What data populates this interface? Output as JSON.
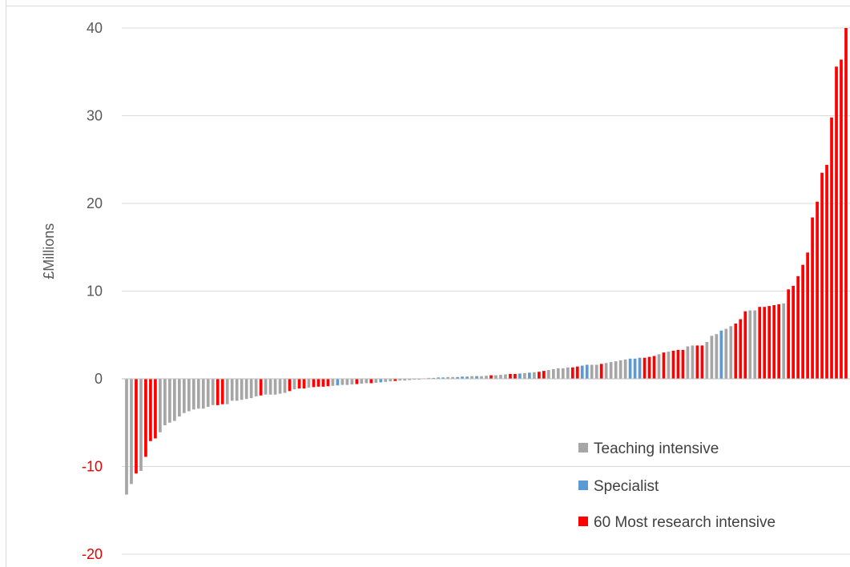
{
  "chart_data": {
    "type": "bar",
    "title": "",
    "xlabel": "",
    "ylabel": "£Millions",
    "ylim": [
      -20,
      40
    ],
    "yticks": [
      40,
      30,
      20,
      10,
      0,
      -10,
      -20
    ],
    "grid": true,
    "legend_position": "bottom-right",
    "colors": {
      "teaching": "#a6a6a6",
      "specialist": "#5b9bd5",
      "research": "#ff0000",
      "negative_tick": "#e60000"
    },
    "legend": [
      {
        "key": "teaching",
        "label": "Teaching intensive"
      },
      {
        "key": "specialist",
        "label": "Specialist"
      },
      {
        "key": "research",
        "label": "60 Most research intensive"
      }
    ],
    "series": [
      {
        "key": "teaching",
        "name": "Teaching intensive"
      },
      {
        "key": "specialist",
        "name": "Specialist"
      },
      {
        "key": "research",
        "name": "60 Most research intensive"
      }
    ],
    "values": [
      -13.2,
      -12,
      -10.8,
      -10.5,
      -8.9,
      -7.1,
      -6.8,
      -6.1,
      -5.3,
      -5.0,
      -4.8,
      -4.3,
      -3.9,
      -3.7,
      -3.5,
      -3.4,
      -3.4,
      -3.2,
      -3.0,
      -3.0,
      -2.9,
      -2.9,
      -2.5,
      -2.5,
      -2.4,
      -2.3,
      -2.2,
      -2.0,
      -1.9,
      -1.8,
      -1.8,
      -1.8,
      -1.7,
      -1.6,
      -1.4,
      -1.2,
      -1.1,
      -1.1,
      -1.0,
      -0.95,
      -0.9,
      -0.9,
      -0.85,
      -0.8,
      -0.75,
      -0.7,
      -0.7,
      -0.65,
      -0.6,
      -0.55,
      -0.5,
      -0.5,
      -0.45,
      -0.4,
      -0.35,
      -0.3,
      -0.25,
      -0.2,
      -0.2,
      -0.15,
      -0.1,
      -0.1,
      0.05,
      0.1,
      0.1,
      0.15,
      0.15,
      0.2,
      0.2,
      0.2,
      0.25,
      0.25,
      0.3,
      0.3,
      0.3,
      0.35,
      0.4,
      0.4,
      0.45,
      0.5,
      0.55,
      0.55,
      0.6,
      0.65,
      0.7,
      0.75,
      0.8,
      0.9,
      1.0,
      1.1,
      1.2,
      1.2,
      1.3,
      1.3,
      1.4,
      1.5,
      1.6,
      1.6,
      1.6,
      1.7,
      1.8,
      1.9,
      2.0,
      2.1,
      2.2,
      2.3,
      2.3,
      2.4,
      2.4,
      2.5,
      2.6,
      2.8,
      3.0,
      3.1,
      3.2,
      3.3,
      3.3,
      3.7,
      3.8,
      3.8,
      3.8,
      4.2,
      4.9,
      5.1,
      5.5,
      5.7,
      6.0,
      6.3,
      6.8,
      7.7,
      7.8,
      7.8,
      8.2,
      8.2,
      8.3,
      8.4,
      8.5,
      8.6,
      10.2,
      10.6,
      11.7,
      13.0,
      14.4,
      18.4,
      20.2,
      23.5,
      24.4,
      29.8,
      35.6,
      36.4,
      40.0
    ],
    "groups": [
      "teaching",
      "teaching",
      "research",
      "teaching",
      "research",
      "research",
      "research",
      "teaching",
      "teaching",
      "teaching",
      "teaching",
      "teaching",
      "teaching",
      "teaching",
      "teaching",
      "teaching",
      "teaching",
      "teaching",
      "teaching",
      "research",
      "research",
      "teaching",
      "teaching",
      "teaching",
      "teaching",
      "teaching",
      "teaching",
      "teaching",
      "research",
      "teaching",
      "teaching",
      "teaching",
      "teaching",
      "teaching",
      "research",
      "teaching",
      "research",
      "research",
      "teaching",
      "research",
      "research",
      "research",
      "research",
      "teaching",
      "specialist",
      "teaching",
      "teaching",
      "teaching",
      "research",
      "teaching",
      "teaching",
      "research",
      "teaching",
      "specialist",
      "teaching",
      "teaching",
      "research",
      "teaching",
      "teaching",
      "teaching",
      "teaching",
      "teaching",
      "research",
      "teaching",
      "specialist",
      "specialist",
      "specialist",
      "teaching",
      "teaching",
      "specialist",
      "specialist",
      "specialist",
      "teaching",
      "specialist",
      "teaching",
      "teaching",
      "research",
      "teaching",
      "teaching",
      "teaching",
      "research",
      "research",
      "specialist",
      "teaching",
      "specialist",
      "teaching",
      "research",
      "research",
      "teaching",
      "teaching",
      "teaching",
      "teaching",
      "teaching",
      "research",
      "research",
      "specialist",
      "specialist",
      "teaching",
      "teaching",
      "research",
      "teaching",
      "teaching",
      "teaching",
      "teaching",
      "teaching",
      "specialist",
      "specialist",
      "specialist",
      "research",
      "research",
      "research",
      "teaching",
      "research",
      "teaching",
      "research",
      "research",
      "research",
      "teaching",
      "teaching",
      "research",
      "research",
      "teaching",
      "teaching",
      "teaching",
      "specialist",
      "teaching",
      "teaching",
      "research",
      "research",
      "research",
      "teaching",
      "teaching",
      "research",
      "research",
      "research",
      "research",
      "research",
      "teaching",
      "research",
      "research",
      "research",
      "research",
      "research",
      "research",
      "research",
      "research",
      "research",
      "research",
      "research",
      "research",
      "research"
    ]
  }
}
